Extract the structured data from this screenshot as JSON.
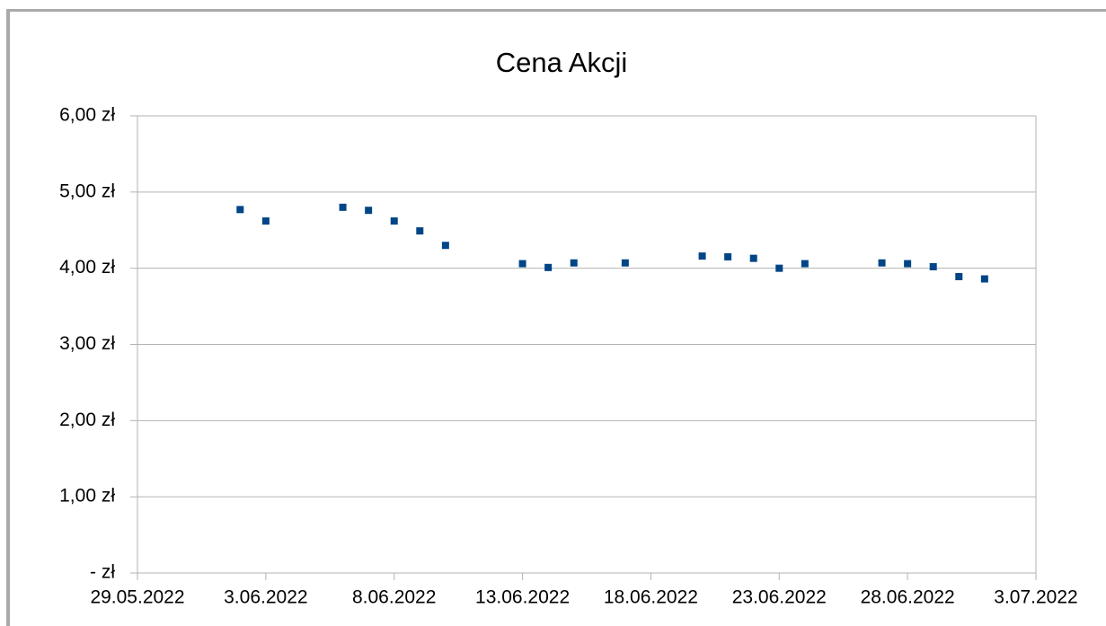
{
  "chart_data": {
    "type": "scatter",
    "title": "Cena Akcji",
    "x": [
      "2.06.2022",
      "3.06.2022",
      "6.06.2022",
      "7.06.2022",
      "8.06.2022",
      "9.06.2022",
      "10.06.2022",
      "13.06.2022",
      "14.06.2022",
      "15.06.2022",
      "17.06.2022",
      "20.06.2022",
      "21.06.2022",
      "22.06.2022",
      "23.06.2022",
      "24.06.2022",
      "27.06.2022",
      "28.06.2022",
      "29.06.2022",
      "30.06.2022",
      "1.07.2022"
    ],
    "values": [
      4.77,
      4.62,
      4.8,
      4.76,
      4.62,
      4.49,
      4.3,
      4.06,
      4.01,
      4.07,
      4.07,
      4.16,
      4.15,
      4.13,
      4.0,
      4.06,
      4.07,
      4.06,
      4.02,
      3.89,
      3.86
    ],
    "color": "#004586",
    "xlim": [
      "29.05.2022",
      "3.07.2022"
    ],
    "xticks": [
      "29.05.2022",
      "3.06.2022",
      "8.06.2022",
      "13.06.2022",
      "18.06.2022",
      "23.06.2022",
      "28.06.2022",
      "3.07.2022"
    ],
    "ylim": [
      0,
      6
    ],
    "yticks": [
      {
        "value": 0,
        "label": "-   zł"
      },
      {
        "value": 1,
        "label": "1,00 zł"
      },
      {
        "value": 2,
        "label": "2,00 zł"
      },
      {
        "value": 3,
        "label": "3,00 zł"
      },
      {
        "value": 4,
        "label": "4,00 zł"
      },
      {
        "value": 5,
        "label": "5,00 zł"
      },
      {
        "value": 6,
        "label": "6,00 zł"
      }
    ],
    "grid": true
  }
}
